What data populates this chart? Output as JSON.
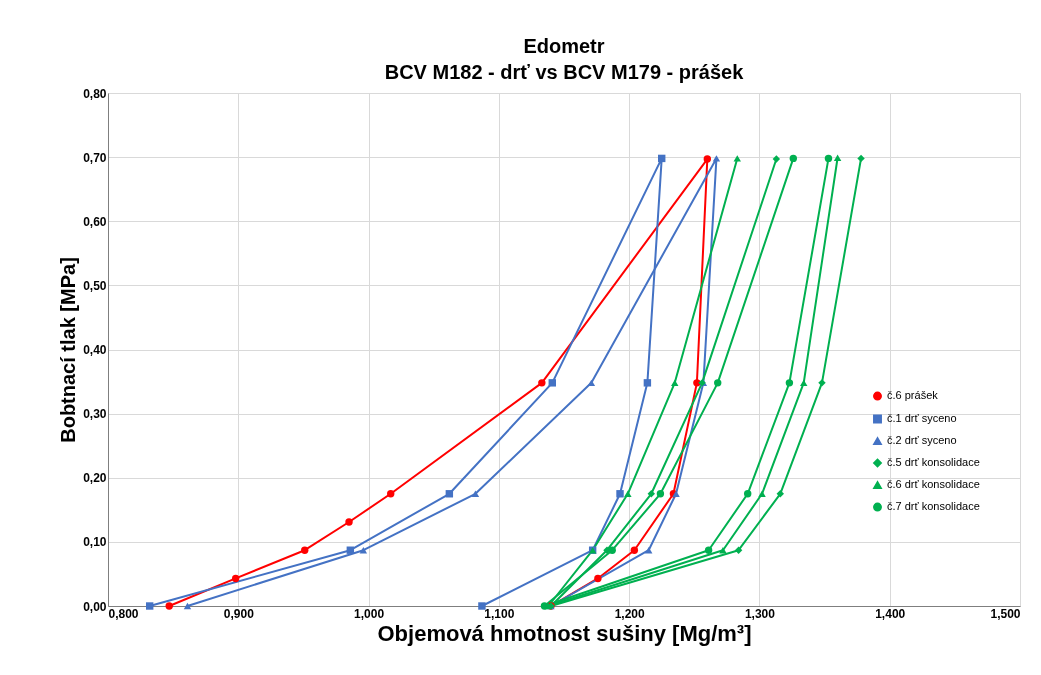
{
  "chart_data": {
    "type": "line",
    "title": "Edometr",
    "subtitle": "BCV M182 - drť  vs BCV M179 - prášek",
    "xlabel": "Objemová hmotnost sušiny [Mg/m³]",
    "ylabel": "Bobtnací tlak [MPa]",
    "xlim": [
      0.8,
      1.5
    ],
    "ylim": [
      0,
      0.8
    ],
    "xticks": [
      {
        "value": 0.8,
        "label": "0,800"
      },
      {
        "value": 0.9,
        "label": "0,900"
      },
      {
        "value": 1.0,
        "label": "1,000"
      },
      {
        "value": 1.1,
        "label": "1,100"
      },
      {
        "value": 1.2,
        "label": "1,200"
      },
      {
        "value": 1.3,
        "label": "1,300"
      },
      {
        "value": 1.4,
        "label": "1,400"
      },
      {
        "value": 1.5,
        "label": "1,500"
      }
    ],
    "yticks": [
      {
        "value": 0,
        "label": "0,00"
      },
      {
        "value": 0.1,
        "label": "0,10"
      },
      {
        "value": 0.2,
        "label": "0,20"
      },
      {
        "value": 0.3,
        "label": "0,30"
      },
      {
        "value": 0.4,
        "label": "0,40"
      },
      {
        "value": 0.5,
        "label": "0,50"
      },
      {
        "value": 0.6,
        "label": "0,60"
      },
      {
        "value": 0.7,
        "label": "0,70"
      },
      {
        "value": 0.8,
        "label": "0,80"
      }
    ],
    "grid": true,
    "legend": "right",
    "series": [
      {
        "name": "č.6 prášek",
        "color": "#ff0000",
        "marker": "circle",
        "x": [
          0.847,
          0.898,
          0.951,
          0.985,
          1.017,
          1.133,
          1.26,
          1.252,
          1.234,
          1.204,
          1.176,
          1.14
        ],
        "values": [
          0,
          0.043,
          0.087,
          0.131,
          0.175,
          0.348,
          0.697,
          0.348,
          0.175,
          0.087,
          0.043,
          0
        ]
      },
      {
        "name": "č.1 drť syceno",
        "color": "#4472c4",
        "marker": "square",
        "x": [
          0.832,
          0.986,
          1.062,
          1.141,
          1.225,
          1.214,
          1.193,
          1.172,
          1.087
        ],
        "values": [
          0,
          0.087,
          0.175,
          0.348,
          0.698,
          0.348,
          0.175,
          0.087,
          0
        ]
      },
      {
        "name": "č.2 drť syceno",
        "color": "#4472c4",
        "marker": "triangle",
        "x": [
          0.861,
          0.996,
          1.082,
          1.171,
          1.267,
          1.257,
          1.236,
          1.215,
          1.14
        ],
        "values": [
          0,
          0.087,
          0.175,
          0.348,
          0.698,
          0.348,
          0.175,
          0.087,
          0
        ]
      },
      {
        "name": "č.5 drť konsolidace",
        "color": "#00b050",
        "marker": "diamond",
        "x": [
          1.313,
          1.256,
          1.217,
          1.183,
          1.14,
          1.284,
          1.316,
          1.348,
          1.378
        ],
        "values": [
          0.697,
          0.348,
          0.175,
          0.087,
          0,
          0.087,
          0.175,
          0.348,
          0.698
        ]
      },
      {
        "name": "č.6 drť konsolidace",
        "color": "#00b050",
        "marker": "triangle",
        "x": [
          1.283,
          1.235,
          1.199,
          1.172,
          1.138,
          1.272,
          1.302,
          1.334,
          1.36
        ],
        "values": [
          0.698,
          0.348,
          0.175,
          0.087,
          0,
          0.087,
          0.175,
          0.348,
          0.699
        ]
      },
      {
        "name": "č.7 drť konsolidace",
        "color": "#00b050",
        "marker": "circle",
        "x": [
          1.326,
          1.268,
          1.224,
          1.187,
          1.135,
          1.261,
          1.291,
          1.323,
          1.353
        ],
        "values": [
          0.698,
          0.348,
          0.175,
          0.087,
          0,
          0.087,
          0.175,
          0.348,
          0.698
        ]
      }
    ]
  }
}
